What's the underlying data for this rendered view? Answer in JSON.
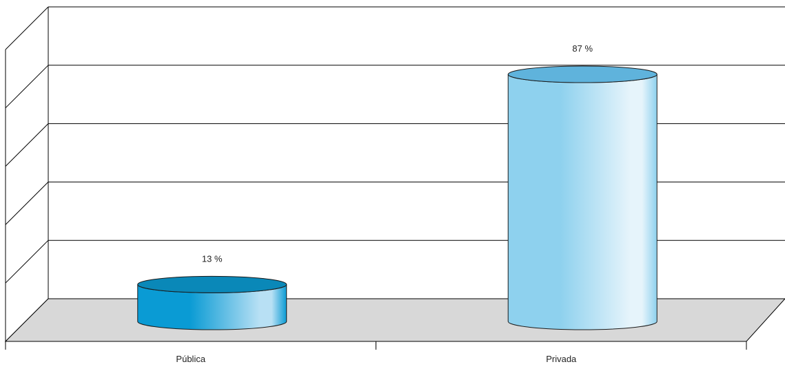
{
  "chart_data": {
    "type": "bar",
    "style": "3d-cylinder",
    "categories": [
      "Pública",
      "Privada"
    ],
    "values": [
      13,
      87
    ],
    "data_labels": [
      "13 %",
      "87 %"
    ],
    "ylim": [
      0,
      100
    ],
    "grid": true,
    "colors": {
      "Pública": {
        "top": "#0a88b8",
        "side_dark": "#0a9bd4",
        "side_light": "#b8e0f4"
      },
      "Privada": {
        "top": "#5fb3dc",
        "side_dark": "#8ed1ee",
        "side_light": "#e6f4fb"
      },
      "floor": "#d8d8d8",
      "gridline": "#000000"
    }
  }
}
